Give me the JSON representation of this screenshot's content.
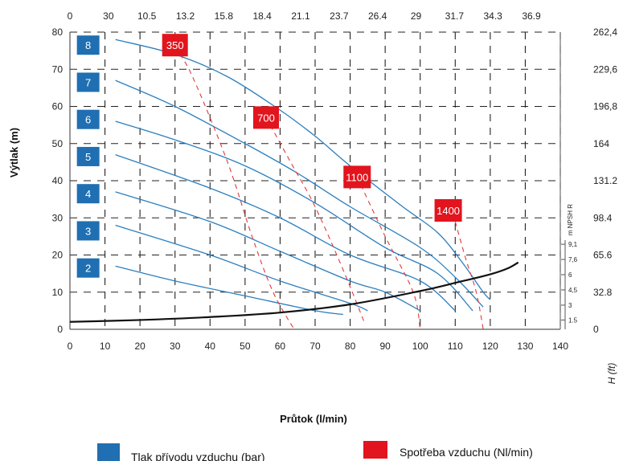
{
  "chart_data": {
    "type": "line",
    "xlabel": "Průtok (l/min)",
    "ylabel": "Výtlak (m)",
    "y2label": "H (ft)",
    "npsh_label": "m NPSH R",
    "xlim": [
      0,
      140
    ],
    "ylim": [
      0,
      80
    ],
    "x_ticks": [
      0,
      10,
      20,
      30,
      40,
      50,
      60,
      70,
      80,
      90,
      100,
      110,
      120,
      130,
      140
    ],
    "y_ticks": [
      0,
      10,
      20,
      30,
      40,
      50,
      60,
      70,
      80
    ],
    "top_ticks": [
      "0",
      "30",
      "10.5",
      "13.2",
      "15.8",
      "18.4",
      "21.1",
      "23.7",
      "26.4",
      "29",
      "31.7",
      "34.3",
      "36.9"
    ],
    "right_ticks": [
      {
        "y": 80,
        "label": "262,4"
      },
      {
        "y": 70,
        "label": "229,6"
      },
      {
        "y": 60,
        "label": "196,8"
      },
      {
        "y": 50,
        "label": "164"
      },
      {
        "y": 40,
        "label": "131.2"
      },
      {
        "y": 30,
        "label": "98.4"
      },
      {
        "y": 20,
        "label": "65.6"
      },
      {
        "y": 10,
        "label": "32.8"
      },
      {
        "y": 0,
        "label": "0"
      }
    ],
    "npsh_ticks": [
      {
        "y": 22.9,
        "label": "9,1"
      },
      {
        "y": 18.8,
        "label": "7,6"
      },
      {
        "y": 14.7,
        "label": "6"
      },
      {
        "y": 10.6,
        "label": "4,5"
      },
      {
        "y": 6.5,
        "label": "3"
      },
      {
        "y": 2.5,
        "label": "1.5"
      }
    ],
    "pressure_series": [
      {
        "name": "8",
        "label_y": 76.5,
        "points": [
          [
            13,
            78
          ],
          [
            30,
            74
          ],
          [
            45,
            68
          ],
          [
            60,
            59
          ],
          [
            70,
            52
          ],
          [
            80,
            44
          ],
          [
            95,
            33
          ],
          [
            105,
            26
          ],
          [
            112,
            18
          ],
          [
            118,
            10
          ],
          [
            120,
            8
          ]
        ]
      },
      {
        "name": "7",
        "label_y": 66.5,
        "points": [
          [
            13,
            67
          ],
          [
            30,
            60
          ],
          [
            50,
            50
          ],
          [
            65,
            42
          ],
          [
            80,
            33
          ],
          [
            100,
            22
          ],
          [
            110,
            14
          ],
          [
            118,
            6
          ]
        ]
      },
      {
        "name": "6",
        "label_y": 56.5,
        "points": [
          [
            13,
            56
          ],
          [
            30,
            51
          ],
          [
            50,
            44
          ],
          [
            70,
            34
          ],
          [
            90,
            22
          ],
          [
            105,
            15
          ],
          [
            115,
            5
          ]
        ]
      },
      {
        "name": "5",
        "label_y": 46.5,
        "points": [
          [
            13,
            47
          ],
          [
            40,
            38
          ],
          [
            60,
            30
          ],
          [
            80,
            20
          ],
          [
            100,
            13
          ],
          [
            110,
            5
          ]
        ]
      },
      {
        "name": "4",
        "label_y": 36.5,
        "points": [
          [
            13,
            37
          ],
          [
            40,
            29
          ],
          [
            60,
            21
          ],
          [
            80,
            13
          ],
          [
            90,
            10
          ],
          [
            100,
            5
          ]
        ]
      },
      {
        "name": "3",
        "label_y": 26.5,
        "points": [
          [
            13,
            28
          ],
          [
            40,
            20
          ],
          [
            60,
            13
          ],
          [
            80,
            7
          ],
          [
            85,
            5
          ]
        ]
      },
      {
        "name": "2",
        "label_y": 16.5,
        "points": [
          [
            13,
            17
          ],
          [
            30,
            13
          ],
          [
            50,
            9
          ],
          [
            70,
            5
          ],
          [
            78,
            4
          ]
        ]
      }
    ],
    "air_consumption": [
      {
        "name": "350",
        "label_x": 30,
        "label_y": 76.5,
        "points": [
          [
            30,
            76
          ],
          [
            35,
            68
          ],
          [
            45,
            45
          ],
          [
            52,
            25
          ],
          [
            58,
            10
          ],
          [
            64,
            0
          ]
        ]
      },
      {
        "name": "700",
        "label_x": 56,
        "label_y": 57,
        "points": [
          [
            56,
            57
          ],
          [
            63,
            45
          ],
          [
            70,
            33
          ],
          [
            78,
            16
          ],
          [
            84,
            2
          ]
        ]
      },
      {
        "name": "1100",
        "label_x": 82,
        "label_y": 41,
        "points": [
          [
            82,
            41
          ],
          [
            90,
            25
          ],
          [
            98,
            10
          ],
          [
            100,
            0
          ]
        ]
      },
      {
        "name": "1400",
        "label_x": 108,
        "label_y": 32,
        "points": [
          [
            110,
            29
          ],
          [
            113,
            19
          ],
          [
            116,
            10
          ],
          [
            118,
            0
          ]
        ]
      }
    ],
    "npsh_curve": [
      [
        0,
        2
      ],
      [
        20,
        2.5
      ],
      [
        40,
        3.3
      ],
      [
        60,
        4.5
      ],
      [
        80,
        6.7
      ],
      [
        100,
        10.3
      ],
      [
        110,
        12.5
      ],
      [
        120,
        14.8
      ],
      [
        125,
        16.4
      ],
      [
        128,
        18
      ]
    ],
    "legend": {
      "pressure": "Tlak přívodu vzduchu (bar)",
      "air": "Spotřeba vzduchu (Nl/min)"
    },
    "colors": {
      "pressure": "#1f6fb2",
      "curve": "#2b7fbf",
      "air": "#e2141e",
      "air_line": "#e03a3a",
      "npsh": "#111111"
    },
    "grid": true
  }
}
